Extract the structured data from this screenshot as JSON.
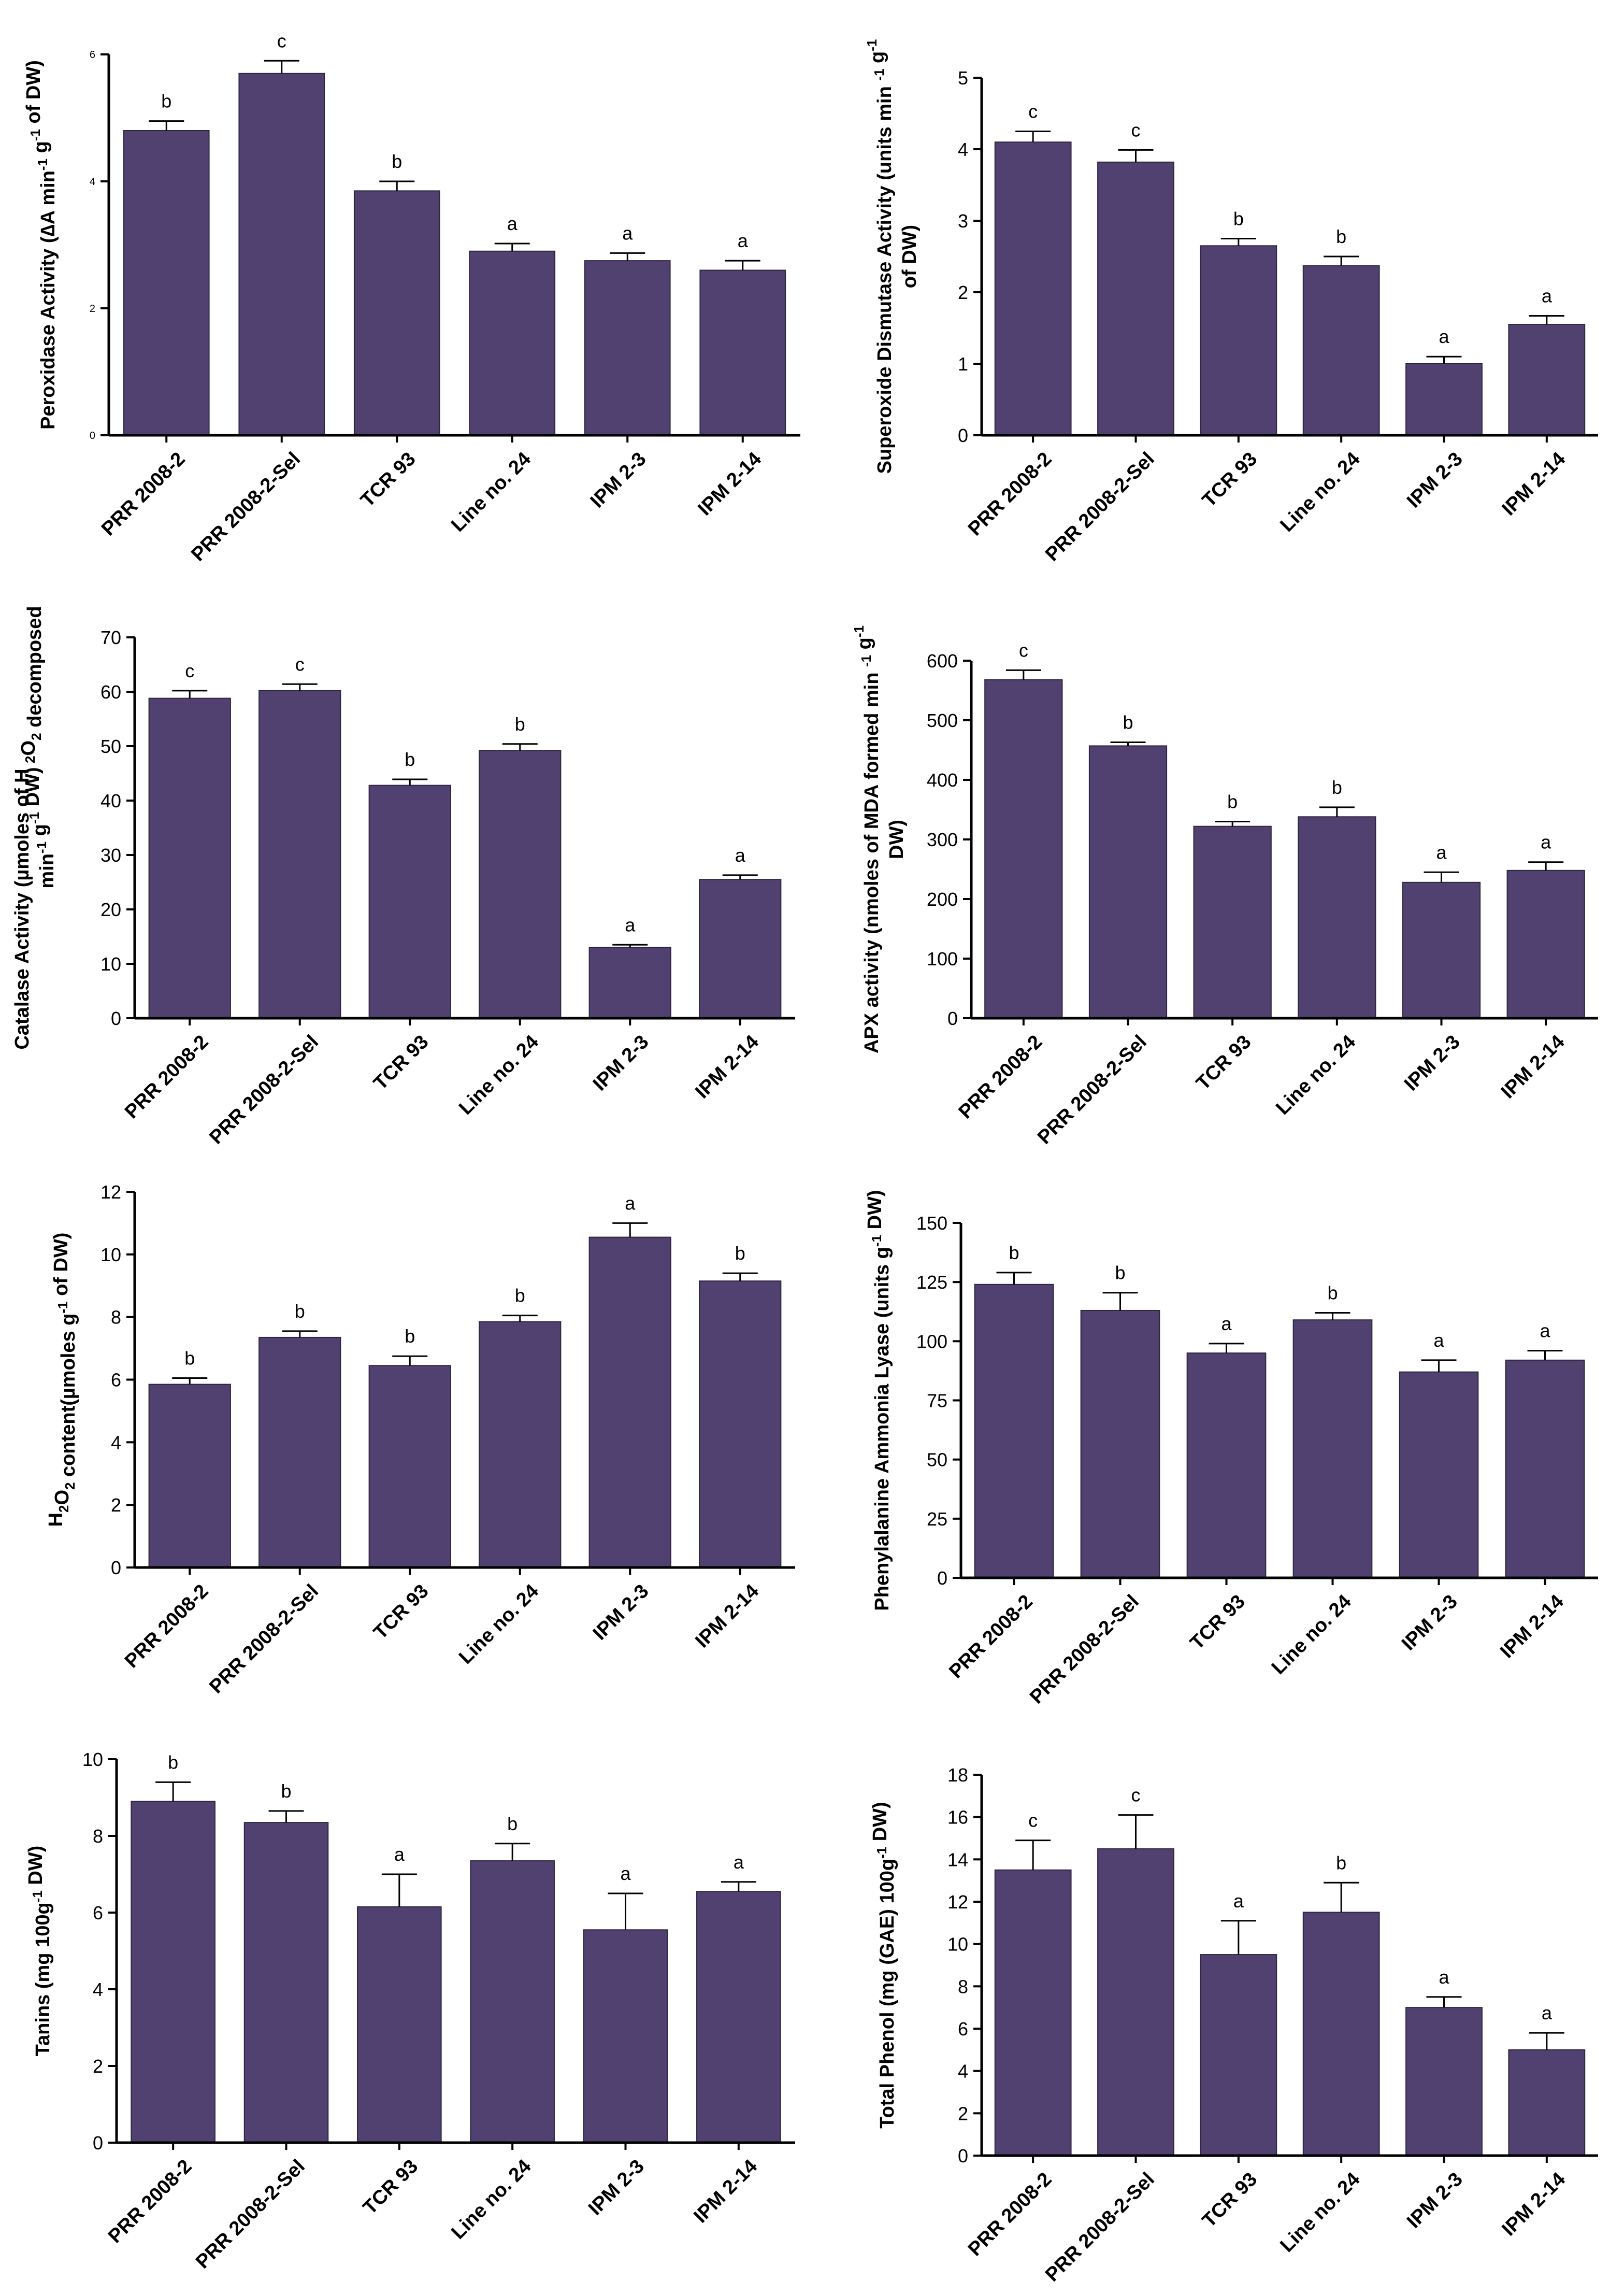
{
  "chart_data": [
    {
      "type": "bar",
      "ylabel_lines": [
        [
          "Peroxidase Activity (",
          {
            "t": "∆"
          },
          "A min",
          {
            "sup": "-1"
          },
          " g",
          {
            "sup": "-1"
          },
          " of DW)"
        ]
      ],
      "categories": [
        "PRR 2008-2",
        "PRR 2008-2-Sel",
        "TCR 93",
        "Line no. 24",
        "IPM 2-3",
        "IPM 2-14"
      ],
      "values": [
        4.8,
        5.7,
        3.85,
        2.9,
        2.75,
        2.6
      ],
      "errors": [
        0.15,
        0.2,
        0.15,
        0.12,
        0.12,
        0.15
      ],
      "significance": [
        "b",
        "c",
        "b",
        "a",
        "a",
        "a"
      ],
      "ylim": [
        0,
        6
      ],
      "yticks": [
        0,
        2,
        4,
        6
      ]
    },
    {
      "type": "bar",
      "ylabel_lines": [
        [
          "Superoxide Dismutase Activity (units min ",
          {
            "sup": "-1"
          },
          " g",
          {
            "sup": "-1"
          }
        ],
        [
          "of DW)"
        ]
      ],
      "categories": [
        "PRR 2008-2",
        "PRR 2008-2-Sel",
        "TCR 93",
        "Line no. 24",
        "IPM 2-3",
        "IPM 2-14"
      ],
      "values": [
        4.1,
        3.82,
        2.65,
        2.37,
        1.0,
        1.55
      ],
      "errors": [
        0.15,
        0.17,
        0.1,
        0.13,
        0.1,
        0.12
      ],
      "significance": [
        "c",
        "c",
        "b",
        "b",
        "a",
        "a"
      ],
      "ylim": [
        0,
        5
      ],
      "yticks": [
        0,
        1,
        2,
        3,
        4,
        5
      ]
    },
    {
      "type": "bar",
      "ylabel_lines": [
        [
          "Catalase Activity (µmoles of H ",
          {
            "sub": "2"
          },
          "O",
          {
            "sub": "2"
          },
          " decomposed"
        ],
        [
          "min",
          {
            "sup": "-1"
          },
          " g",
          {
            "sup": "-1"
          },
          " DW)"
        ]
      ],
      "categories": [
        "PRR 2008-2",
        "PRR 2008-2-Sel",
        "TCR 93",
        "Line no. 24",
        "IPM 2-3",
        "IPM 2-14"
      ],
      "values": [
        58.8,
        60.2,
        42.8,
        49.2,
        13.0,
        25.5
      ],
      "errors": [
        1.4,
        1.2,
        1.1,
        1.2,
        0.5,
        0.8
      ],
      "significance": [
        "c",
        "c",
        "b",
        "b",
        "a",
        "a"
      ],
      "ylim": [
        0,
        70
      ],
      "yticks": [
        0,
        10,
        20,
        30,
        40,
        50,
        60,
        70
      ]
    },
    {
      "type": "bar",
      "ylabel_lines": [
        [
          "APX activity (nmoles of MDA formed min ",
          {
            "sup": "-1"
          },
          " g",
          {
            "sup": "-1"
          }
        ],
        [
          "DW)"
        ]
      ],
      "categories": [
        "PRR 2008-2",
        "PRR 2008-2-Sel",
        "TCR 93",
        "Line no. 24",
        "IPM 2-3",
        "IPM 2-14"
      ],
      "values": [
        568,
        457,
        322,
        338,
        228,
        248
      ],
      "errors": [
        16,
        6,
        8,
        16,
        17,
        14
      ],
      "significance": [
        "c",
        "b",
        "b",
        "b",
        "a",
        "a"
      ],
      "ylim": [
        0,
        600
      ],
      "yticks": [
        0,
        100,
        200,
        300,
        400,
        500,
        600
      ]
    },
    {
      "type": "bar",
      "ylabel_lines": [
        [
          "H",
          {
            "sub": "2"
          },
          "O",
          {
            "sub": "2"
          },
          " content(µmoles g",
          {
            "sup": "-1"
          },
          " of DW)"
        ]
      ],
      "categories": [
        "PRR 2008-2",
        "PRR 2008-2-Sel",
        "TCR 93",
        "Line no. 24",
        "IPM 2-3",
        "IPM 2-14"
      ],
      "values": [
        5.85,
        7.35,
        6.45,
        7.85,
        10.55,
        9.15
      ],
      "errors": [
        0.2,
        0.2,
        0.3,
        0.2,
        0.45,
        0.25
      ],
      "significance": [
        "b",
        "b",
        "b",
        "b",
        "a",
        "b"
      ],
      "ylim": [
        0,
        12
      ],
      "yticks": [
        0,
        2,
        4,
        6,
        8,
        10,
        12
      ]
    },
    {
      "type": "bar",
      "ylabel_lines": [
        [
          "Phenylalanine Ammonia Lyase (units g",
          {
            "sup": "-1"
          },
          " DW)"
        ]
      ],
      "categories": [
        "PRR 2008-2",
        "PRR 2008-2-Sel",
        "TCR 93",
        "Line no. 24",
        "IPM 2-3",
        "IPM 2-14"
      ],
      "values": [
        124,
        113,
        95,
        109,
        87,
        92
      ],
      "errors": [
        5,
        7.5,
        4,
        3,
        5,
        4
      ],
      "significance": [
        "b",
        "b",
        "a",
        "b",
        "a",
        "a"
      ],
      "ylim": [
        0,
        150
      ],
      "yticks": [
        0,
        25,
        50,
        75,
        100,
        125,
        150
      ]
    },
    {
      "type": "bar",
      "ylabel_lines": [
        [
          "Tanins (mg 100g",
          {
            "sup": "-1"
          },
          " DW)"
        ]
      ],
      "categories": [
        "PRR 2008-2",
        "PRR 2008-2-Sel",
        "TCR 93",
        "Line no. 24",
        "IPM 2-3",
        "IPM 2-14"
      ],
      "values": [
        8.9,
        8.35,
        6.15,
        7.35,
        5.55,
        6.55
      ],
      "errors": [
        0.5,
        0.3,
        0.85,
        0.45,
        0.95,
        0.25
      ],
      "significance": [
        "b",
        "b",
        "a",
        "b",
        "a",
        "a"
      ],
      "ylim": [
        0,
        10
      ],
      "yticks": [
        0,
        2,
        4,
        6,
        8,
        10
      ]
    },
    {
      "type": "bar",
      "ylabel_lines": [
        [
          "Total Phenol (mg (GAE) 100g",
          {
            "sup": "-1"
          },
          " DW)"
        ]
      ],
      "categories": [
        "PRR 2008-2",
        "PRR 2008-2-Sel",
        "TCR 93",
        "Line no. 24",
        "IPM 2-3",
        "IPM 2-14"
      ],
      "values": [
        13.5,
        14.5,
        9.5,
        11.5,
        7.0,
        5.0
      ],
      "errors": [
        1.4,
        1.6,
        1.6,
        1.4,
        0.5,
        0.8
      ],
      "significance": [
        "c",
        "c",
        "a",
        "b",
        "a",
        "a"
      ],
      "ylim": [
        0,
        18
      ],
      "yticks": [
        0,
        2,
        4,
        6,
        8,
        10,
        12,
        14,
        16,
        18
      ]
    }
  ]
}
